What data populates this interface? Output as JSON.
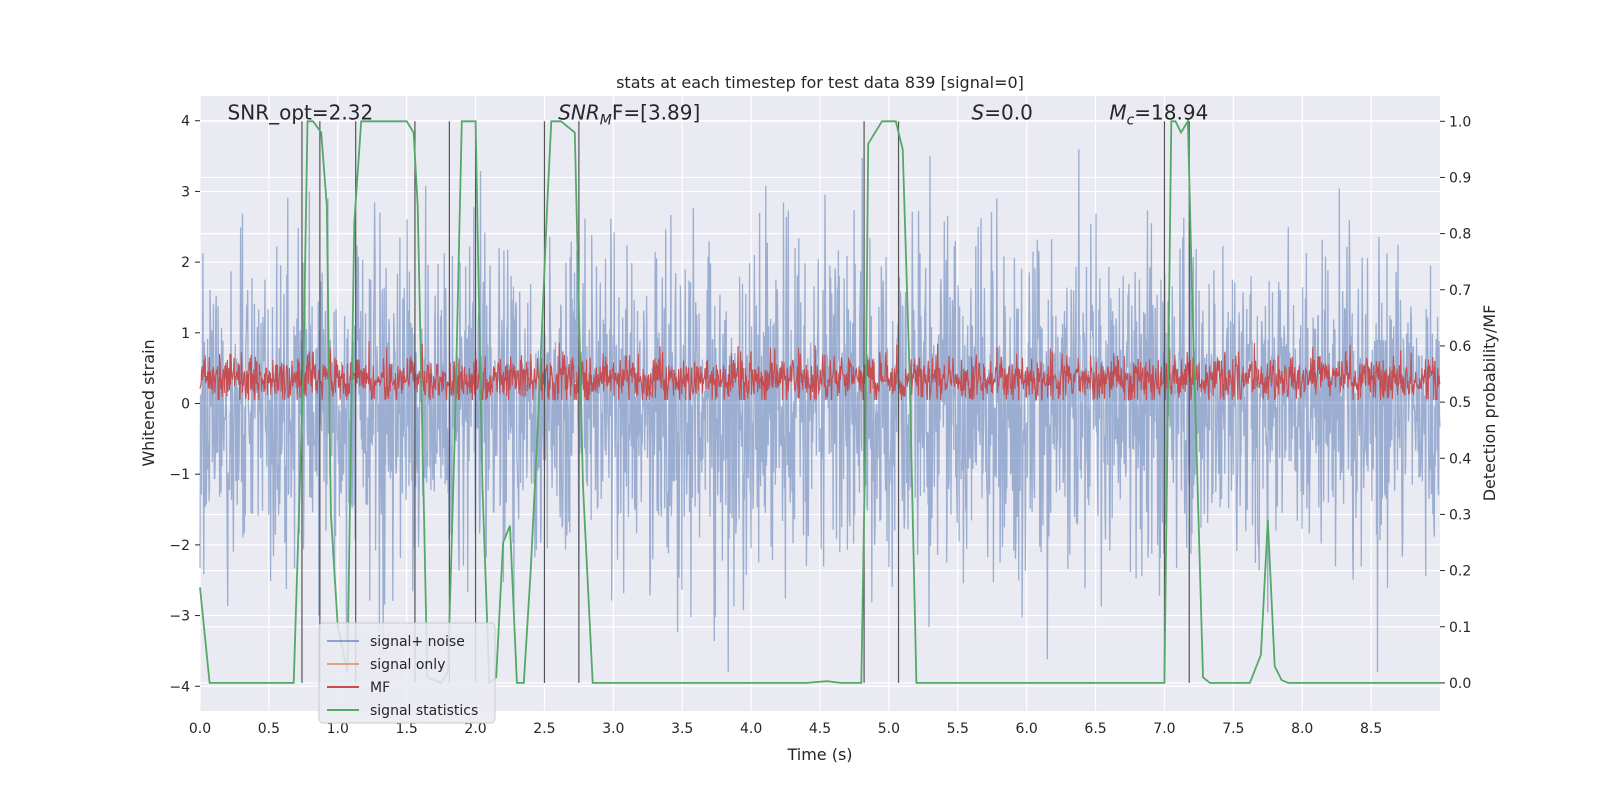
{
  "chart_data": {
    "type": "line",
    "title": "stats at each timestep for test data 839 [signal=0]",
    "xlabel": "Time (s)",
    "ylabel": "Whitened strain",
    "y2label": "Detection probability/MF",
    "xlim": [
      0,
      9
    ],
    "ylim": [
      -4.35,
      4.35
    ],
    "y2lim": [
      -0.05,
      1.045
    ],
    "xticks": [
      "0.0",
      "0.5",
      "1.0",
      "1.5",
      "2.0",
      "2.5",
      "3.0",
      "3.5",
      "4.0",
      "4.5",
      "5.0",
      "5.5",
      "6.0",
      "6.5",
      "7.0",
      "7.5",
      "8.0",
      "8.5"
    ],
    "yticks": [
      "−4",
      "−3",
      "−2",
      "−1",
      "0",
      "1",
      "2",
      "3",
      "4"
    ],
    "y2ticks": [
      "0.0",
      "0.1",
      "0.2",
      "0.3",
      "0.4",
      "0.5",
      "0.6",
      "0.7",
      "0.8",
      "0.9",
      "1.0"
    ],
    "grid": true,
    "legend_position": "lower-left",
    "annotations": [
      {
        "text": "SNR_opt=2.32",
        "x": 0.2,
        "y": 4.1,
        "style": "plain"
      },
      {
        "text": "SNR",
        "sub": "M",
        "rest": "F=[3.89]",
        "x": 2.6,
        "y": 4.1,
        "style": "italic-sub"
      },
      {
        "text": "S",
        "sub": "",
        "rest": "=0.0",
        "x": 5.6,
        "y": 4.1,
        "style": "italic-sub"
      },
      {
        "text": "M",
        "sub": "c",
        "rest": "=18.94",
        "x": 6.6,
        "y": 4.1,
        "style": "italic-sub"
      }
    ],
    "series": [
      {
        "name": "signal+ noise",
        "color": "#4c72b0",
        "kind": "noise",
        "amplitude_range": [
          -3.8,
          3.8
        ]
      },
      {
        "name": "signal only",
        "color": "#dd8452",
        "kind": "flat",
        "values": []
      },
      {
        "name": "MF",
        "color": "#c44e52",
        "kind": "noise-band",
        "band": [
          0.05,
          0.9
        ],
        "axis": "left"
      },
      {
        "name": "signal statistics",
        "color": "#55a868",
        "axis": "right",
        "x": [
          0.0,
          0.07,
          0.1,
          0.4,
          0.68,
          0.75,
          0.78,
          0.82,
          0.88,
          0.92,
          0.95,
          1.0,
          1.07,
          1.12,
          1.17,
          1.2,
          1.3,
          1.5,
          1.55,
          1.58,
          1.65,
          1.75,
          1.8,
          1.85,
          1.9,
          1.97,
          2.0,
          2.05,
          2.1,
          2.15,
          2.2,
          2.25,
          2.3,
          2.35,
          2.4,
          2.45,
          2.52,
          2.55,
          2.62,
          2.72,
          2.78,
          2.85,
          3.5,
          4.0,
          4.4,
          4.55,
          4.65,
          4.8,
          4.83,
          4.85,
          4.95,
          5.05,
          5.1,
          5.15,
          5.2,
          5.5,
          6.0,
          6.5,
          7.0,
          7.02,
          7.05,
          7.08,
          7.12,
          7.17,
          7.2,
          7.28,
          7.33,
          7.5,
          7.62,
          7.7,
          7.75,
          7.8,
          7.85,
          7.9,
          8.5,
          9.0
        ],
        "values": [
          0.17,
          0.0,
          0.0,
          0.0,
          0.0,
          0.55,
          1.0,
          1.0,
          0.98,
          0.85,
          0.3,
          0.1,
          0.02,
          0.82,
          1.0,
          1.0,
          1.0,
          1.0,
          0.98,
          0.85,
          0.01,
          0.0,
          0.02,
          0.45,
          1.0,
          1.0,
          1.0,
          0.35,
          0.0,
          0.01,
          0.25,
          0.28,
          0.0,
          0.0,
          0.2,
          0.45,
          0.85,
          1.0,
          1.0,
          0.98,
          0.35,
          0.0,
          0.0,
          0.0,
          0.0,
          0.003,
          0.0,
          0.0,
          0.45,
          0.96,
          1.0,
          1.0,
          0.95,
          0.55,
          0.0,
          0.0,
          0.0,
          0.0,
          0.0,
          0.4,
          1.0,
          1.0,
          0.98,
          1.0,
          0.7,
          0.01,
          0.0,
          0.0,
          0.0,
          0.05,
          0.29,
          0.03,
          0.005,
          0.0,
          0.0,
          0.0
        ]
      },
      {
        "name": "",
        "color": "#555555",
        "kind": "vlines",
        "x": [
          0.74,
          0.87,
          1.13,
          1.56,
          1.81,
          2.0,
          2.5,
          2.75,
          4.82,
          5.07,
          7.0,
          7.18
        ]
      }
    ]
  }
}
